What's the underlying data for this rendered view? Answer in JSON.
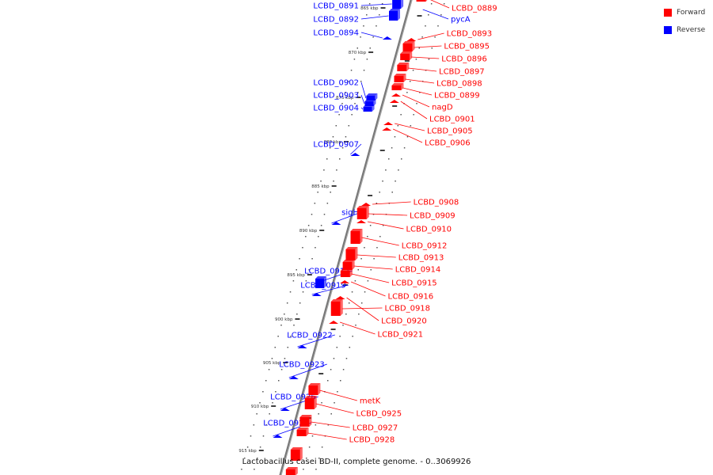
{
  "colors": {
    "forward": "#ff0000",
    "reverse": "#0000ff"
  },
  "legend": [
    {
      "label": "Forward",
      "color": "#ff0000"
    },
    {
      "label": "Reverse",
      "color": "#0000ff"
    }
  ],
  "caption": "Lactobacillus casei BD-II, complete genome. - 0..3069926",
  "scale": {
    "unit": "kbp",
    "ticks": [
      "865 kbp",
      "870 kbp",
      "875 kbp",
      "880 kbp",
      "885 kbp",
      "890 kbp",
      "895 kbp",
      "900 kbp",
      "905 kbp",
      "910 kbp",
      "915 kbp"
    ]
  },
  "genes": {
    "reverse": [
      "LCBD_0891",
      "LCBD_0892",
      "LCBD_0894",
      "LCBD_0902",
      "LCBD_0903",
      "LCBD_0904",
      "LCBD_0907",
      "sigH",
      "LCBD_0917",
      "LCBD_0919",
      "LCBD_0922",
      "LCBD_0923",
      "LCBD_0926",
      "LCBD_0929",
      "pycA"
    ],
    "forward": [
      "LCBD_0889",
      "LCBD_0893",
      "LCBD_0895",
      "LCBD_0896",
      "LCBD_0897",
      "LCBD_0898",
      "LCBD_0899",
      "nagD",
      "LCBD_0901",
      "LCBD_0905",
      "LCBD_0906",
      "LCBD_0908",
      "LCBD_0909",
      "LCBD_0910",
      "LCBD_0912",
      "LCBD_0913",
      "LCBD_0914",
      "LCBD_0915",
      "LCBD_0916",
      "LCBD_0918",
      "LCBD_0920",
      "LCBD_0921",
      "metK",
      "LCBD_0925",
      "LCBD_0927",
      "LCBD_0928"
    ]
  }
}
